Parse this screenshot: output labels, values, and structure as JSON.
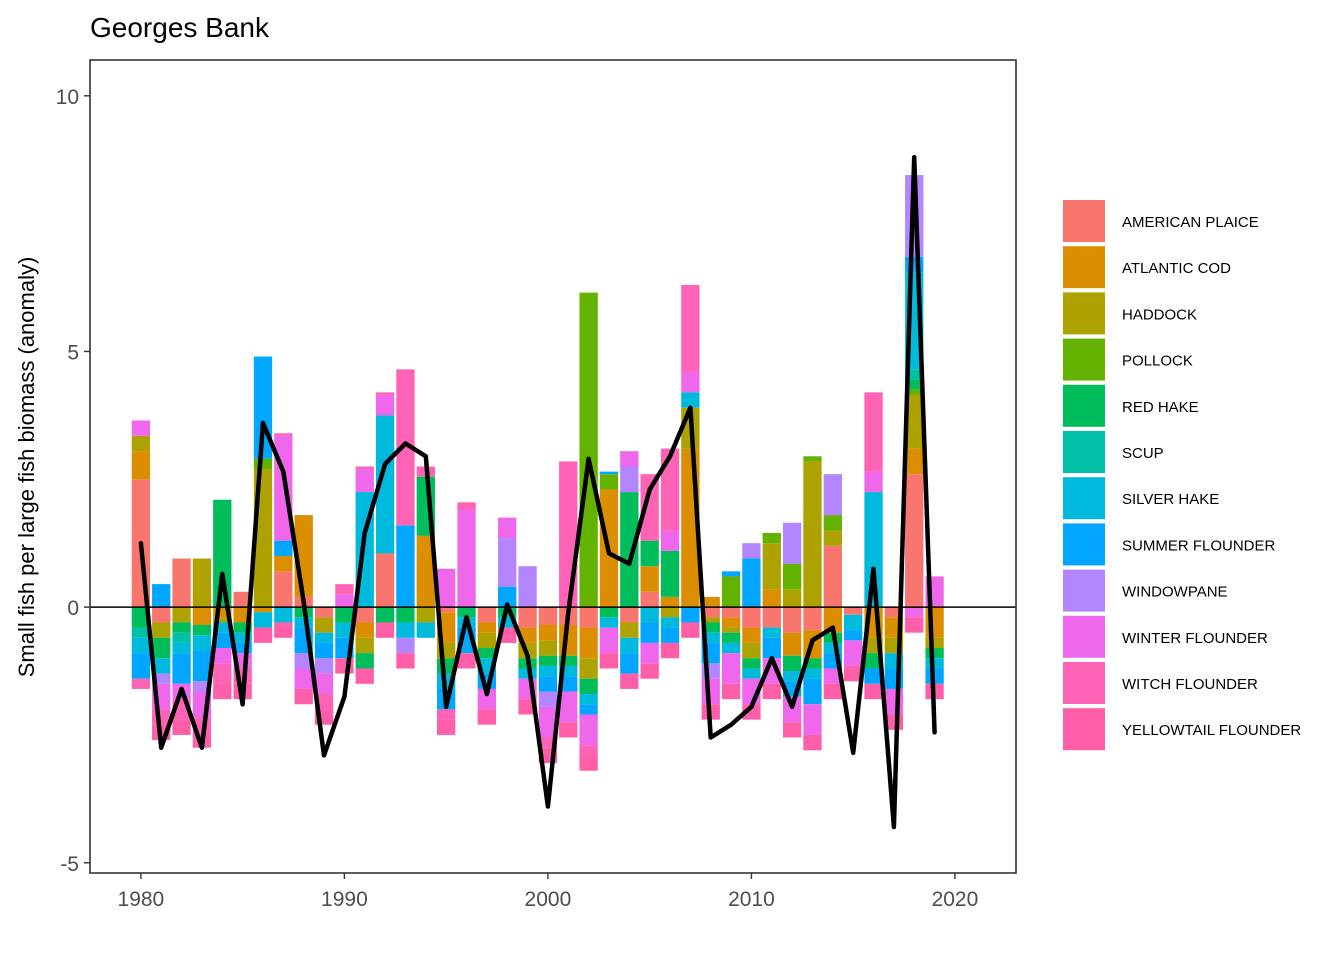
{
  "chart_data": {
    "type": "bar",
    "stacked": true,
    "diverging": true,
    "title": "Georges Bank",
    "xlabel": "",
    "ylabel": "Small fish per large fish biomass (anomaly)",
    "xlim": [
      1977.5,
      2023
    ],
    "ylim": [
      -5.2,
      10.7
    ],
    "x_ticks": [
      1980,
      1990,
      2000,
      2010,
      2020
    ],
    "y_ticks": [
      -5,
      0,
      5,
      10
    ],
    "y_tick_labels": [
      "-5",
      "0",
      "5",
      "10"
    ],
    "grid": false,
    "legend_position": "right",
    "years": [
      1980,
      1981,
      1982,
      1983,
      1984,
      1985,
      1986,
      1987,
      1988,
      1989,
      1990,
      1991,
      1992,
      1993,
      1994,
      1995,
      1996,
      1997,
      1998,
      1999,
      2000,
      2001,
      2002,
      2003,
      2004,
      2005,
      2006,
      2007,
      2008,
      2009,
      2010,
      2011,
      2012,
      2013,
      2014,
      2015,
      2016,
      2017,
      2018,
      2019
    ],
    "series": [
      {
        "name": "AMERICAN PLAICE",
        "color": "#F8766D",
        "values": [
          2.5,
          -0.3,
          0.95,
          0,
          0,
          0.3,
          0,
          0.7,
          0.2,
          -0.2,
          0,
          -0.3,
          1.05,
          0,
          0,
          -0.1,
          0,
          -0.3,
          0,
          -0.4,
          -0.35,
          -0.35,
          -0.4,
          0,
          -0.3,
          0.3,
          0,
          0,
          -0.2,
          -0.2,
          -0.4,
          -0.4,
          -0.5,
          -0.45,
          1.2,
          -0.15,
          0,
          -0.2,
          2.6,
          0
        ]
      },
      {
        "name": "ATLANTIC COD",
        "color": "#DB8E00",
        "values": [
          0.55,
          0,
          0,
          -0.35,
          -0.2,
          -0.3,
          -0.1,
          0.3,
          1.6,
          0,
          0,
          -0.3,
          0,
          0,
          1.4,
          -0.6,
          0,
          -0.2,
          0,
          -0.3,
          -0.3,
          -0.6,
          -0.6,
          2.3,
          0,
          0.5,
          0.2,
          3.1,
          0.2,
          -0.2,
          -0.3,
          0.35,
          -0.45,
          -0.55,
          -0.5,
          0,
          -0.6,
          -0.4,
          0.5,
          -0.6
        ]
      },
      {
        "name": "HADDOCK",
        "color": "#AEA200",
        "values": [
          0.3,
          -0.3,
          -0.3,
          0.95,
          -0.1,
          0,
          2.7,
          0,
          0,
          -0.3,
          0,
          -0.3,
          0,
          0,
          -0.3,
          -0.3,
          0,
          -0.3,
          0,
          -0.3,
          -0.3,
          0,
          -0.4,
          0,
          -0.3,
          0,
          -0.2,
          0.8,
          -0.1,
          -0.1,
          -0.3,
          0.9,
          0.35,
          2.85,
          0.3,
          0,
          -0.3,
          -0.3,
          1.05,
          -0.2
        ]
      },
      {
        "name": "POLLOCK",
        "color": "#64B200",
        "values": [
          0,
          0,
          0,
          0,
          0,
          0,
          0.2,
          0,
          0,
          0,
          0,
          0,
          0,
          0,
          0,
          0,
          0,
          0,
          0,
          0,
          0,
          0,
          6.15,
          0.3,
          0,
          0,
          0,
          0,
          0,
          0.6,
          0,
          0.2,
          0.5,
          0.1,
          0.3,
          0,
          0,
          0,
          0.1,
          0
        ]
      },
      {
        "name": "RED HAKE",
        "color": "#00BD5C",
        "values": [
          -0.4,
          -0.4,
          -0.2,
          -0.2,
          2.1,
          -0.2,
          0,
          0,
          -0.2,
          0,
          -0.3,
          -0.3,
          -0.3,
          -0.3,
          1.15,
          -0.3,
          -0.2,
          -0.2,
          -0.2,
          -0.2,
          -0.2,
          -0.2,
          -0.3,
          -0.2,
          2.25,
          0.5,
          0.9,
          0,
          -0.2,
          -0.2,
          -0.2,
          0,
          -0.3,
          -0.2,
          -0.2,
          0,
          -0.3,
          0,
          0.2,
          -0.2
        ]
      },
      {
        "name": "SCUP",
        "color": "#00C1A7",
        "values": [
          -0.2,
          0,
          -0.2,
          0,
          0,
          0,
          0,
          0,
          0,
          0,
          0,
          0,
          0,
          0,
          0,
          0,
          0,
          0,
          0,
          0,
          0,
          0,
          0,
          0,
          0,
          0,
          0,
          0,
          0,
          0,
          0,
          0,
          0,
          0,
          0,
          0,
          0,
          0,
          0.2,
          0
        ]
      },
      {
        "name": "SILVER HAKE",
        "color": "#00BADE",
        "values": [
          -0.3,
          -0.3,
          -0.2,
          -0.3,
          -0.2,
          -0.2,
          -0.3,
          -0.3,
          -0.2,
          -0.2,
          -0.3,
          2.25,
          2.7,
          -0.3,
          -0.3,
          -0.3,
          -0.2,
          -0.3,
          -0.2,
          -0.2,
          -0.2,
          -0.2,
          -0.2,
          -0.2,
          -0.3,
          -0.3,
          -0.2,
          0.3,
          -0.2,
          -0.2,
          -0.2,
          -0.2,
          -0.2,
          -0.2,
          -0.2,
          -0.3,
          2.25,
          -0.3,
          1.9,
          -0.2
        ]
      },
      {
        "name": "SUMMER FLOUNDER",
        "color": "#00A6FF",
        "values": [
          -0.5,
          0.45,
          -0.6,
          -0.6,
          -0.3,
          -0.2,
          2.0,
          0.3,
          -0.5,
          -0.3,
          -0.4,
          0,
          0,
          1.6,
          0,
          -0.4,
          -0.5,
          -0.3,
          0.4,
          0,
          -0.3,
          -0.3,
          -0.2,
          0.05,
          -0.4,
          -0.4,
          -0.3,
          -0.3,
          -0.4,
          0.1,
          0.95,
          -0.4,
          -0.3,
          -0.5,
          -0.3,
          -0.2,
          -0.3,
          -0.4,
          0.3,
          -0.3
        ]
      },
      {
        "name": "WINDOWPANE",
        "color": "#B385FF",
        "values": [
          0,
          -0.2,
          0,
          -0.2,
          0,
          0,
          0,
          0,
          -0.3,
          -0.3,
          0,
          0,
          0,
          -0.3,
          0,
          0,
          0,
          0,
          0.95,
          0.8,
          -0.3,
          0,
          0,
          0,
          0.5,
          0,
          0,
          0,
          -0.3,
          0,
          0.3,
          0,
          0.8,
          0,
          0.8,
          0,
          0,
          0,
          1.6,
          0
        ]
      },
      {
        "name": "WINTER FLOUNDER",
        "color": "#EF67EB",
        "values": [
          0.3,
          -0.5,
          -0.3,
          -0.5,
          -0.3,
          -0.3,
          0,
          2.05,
          -0.4,
          -0.4,
          0.25,
          0.45,
          0.4,
          0,
          0,
          0.75,
          1.9,
          -0.4,
          0.4,
          -0.4,
          -0.6,
          -0.6,
          -0.6,
          -0.5,
          0.3,
          -0.4,
          0.4,
          0.4,
          -0.5,
          -0.6,
          -0.5,
          -0.5,
          -0.5,
          -0.6,
          -0.3,
          -0.5,
          0.4,
          -0.5,
          -0.2,
          0.6
        ]
      },
      {
        "name": "WITCH FLOUNDER",
        "color": "#FF63B6",
        "values": [
          -0.2,
          -0.3,
          -0.4,
          -0.3,
          -0.4,
          -0.3,
          0,
          0.05,
          0,
          -0.3,
          0.2,
          0.05,
          0.05,
          3.05,
          0.2,
          -0.2,
          0.15,
          0,
          0,
          0,
          -0.2,
          2.85,
          -0.2,
          0,
          0,
          1.3,
          1.6,
          1.7,
          0,
          0,
          0,
          0,
          0,
          0,
          0,
          0,
          1.55,
          0,
          0,
          0
        ]
      },
      {
        "name": "YELLOWTAIL FLOUNDER",
        "color": "#FF5EA8",
        "values": [
          0,
          -0.3,
          -0.3,
          -0.3,
          -0.3,
          -0.3,
          -0.3,
          -0.3,
          -0.3,
          -0.3,
          -0.3,
          -0.3,
          -0.3,
          -0.3,
          0,
          -0.3,
          -0.3,
          -0.3,
          -0.3,
          -0.3,
          -0.3,
          -0.3,
          -0.3,
          -0.3,
          -0.3,
          -0.3,
          -0.3,
          -0.3,
          -0.3,
          -0.3,
          -0.3,
          -0.3,
          -0.3,
          -0.3,
          -0.3,
          -0.3,
          -0.3,
          -0.3,
          -0.3,
          -0.3
        ]
      }
    ],
    "total_line": [
      1.25,
      -2.75,
      -1.6,
      -2.75,
      0.65,
      -1.9,
      3.6,
      2.65,
      0.1,
      -2.9,
      -1.75,
      1.45,
      2.8,
      3.2,
      2.95,
      -1.95,
      -0.2,
      -1.7,
      0.05,
      -0.95,
      -3.9,
      -0.1,
      2.9,
      1.05,
      0.85,
      2.3,
      2.95,
      3.9,
      -2.55,
      -2.3,
      -1.95,
      -1.0,
      -1.95,
      -0.65,
      -0.4,
      -2.85,
      0.75,
      -4.3,
      8.8,
      -2.45
    ]
  }
}
